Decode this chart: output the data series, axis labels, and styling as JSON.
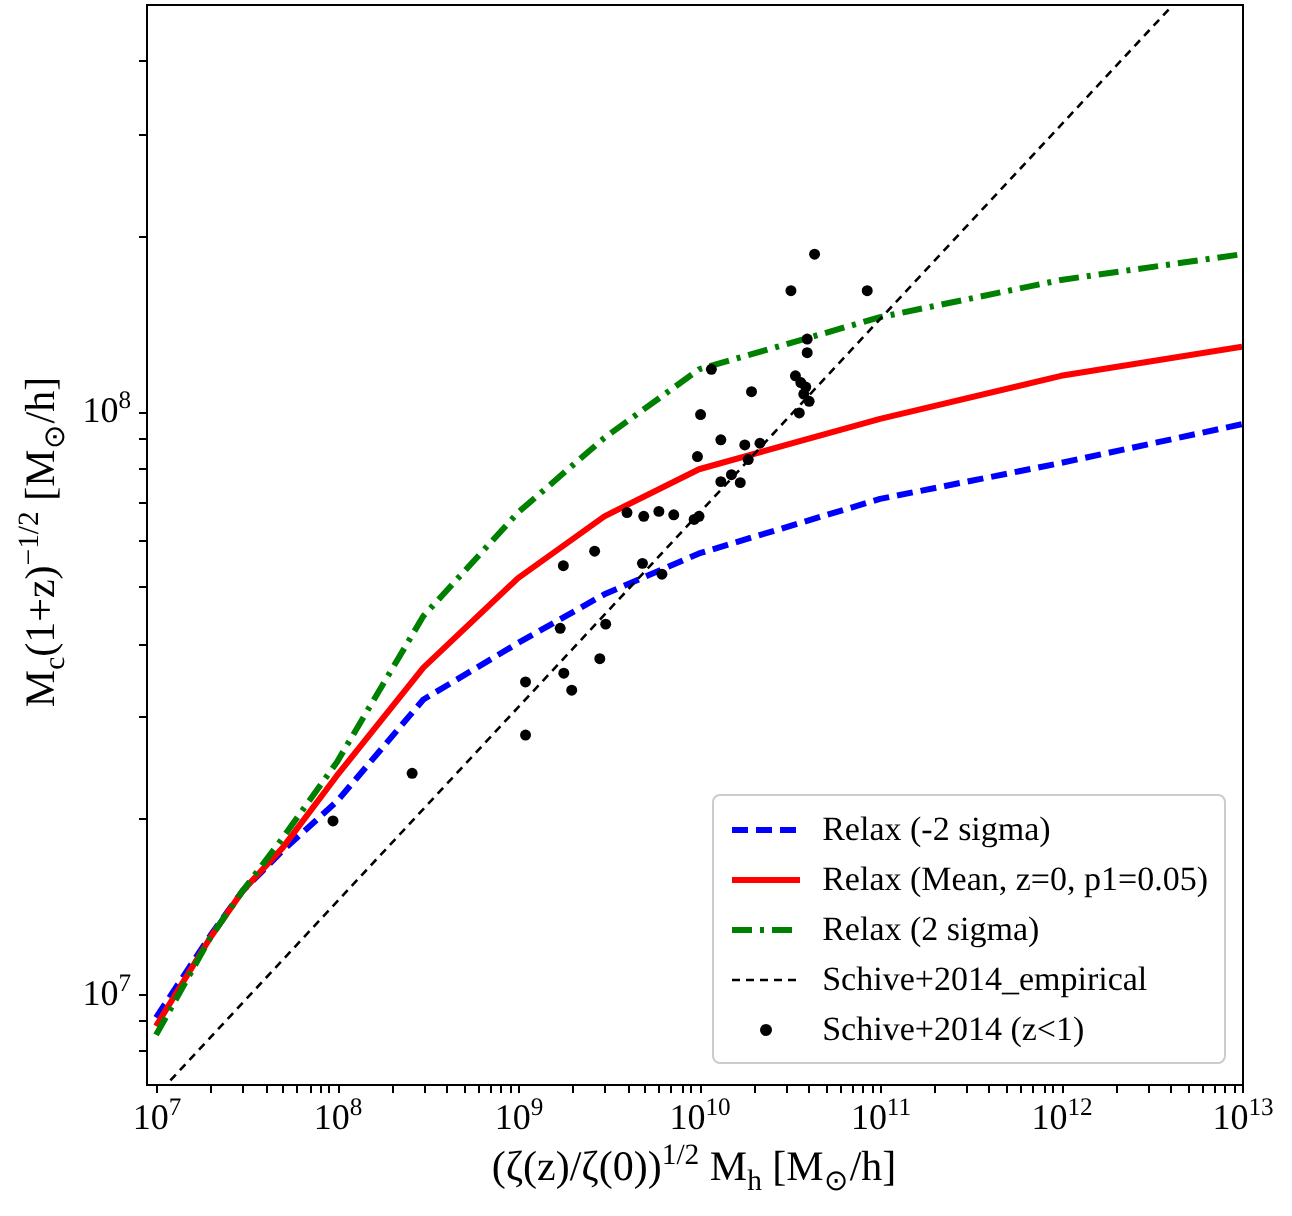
{
  "chart_data": {
    "type": "scatter",
    "xlabel": "(ζ(z)/ζ(0))$^{1/2}$ M$_{h}$ [M$_{⊙}$/h]",
    "ylabel": "M$_{c}$(1+z)$^{−1/2}$ [M$_{⊙}$/h]",
    "log": "xy",
    "grid": false,
    "legend": "bottom right",
    "xlim": [
      8800000.0,
      10000000000000.0
    ],
    "ylim": [
      7000000.0,
      500000000.0
    ],
    "xticks": [
      {
        "value": 10000000.0,
        "label": "10$^{7}$"
      },
      {
        "value": 20000000.0,
        "label": null
      },
      {
        "value": 30000000.0,
        "label": null
      },
      {
        "value": 40000000.0,
        "label": null
      },
      {
        "value": 50000000.0,
        "label": null
      },
      {
        "value": 60000000.0,
        "label": null
      },
      {
        "value": 70000000.0,
        "label": null
      },
      {
        "value": 80000000.0,
        "label": null
      },
      {
        "value": 90000000.0,
        "label": null
      },
      {
        "value": 100000000.0,
        "label": "10$^{8}$"
      },
      {
        "value": 200000000.0,
        "label": null
      },
      {
        "value": 300000000.0,
        "label": null
      },
      {
        "value": 400000000.0,
        "label": null
      },
      {
        "value": 500000000.0,
        "label": null
      },
      {
        "value": 600000000.0,
        "label": null
      },
      {
        "value": 700000000.0,
        "label": null
      },
      {
        "value": 800000000.0,
        "label": null
      },
      {
        "value": 900000000.0,
        "label": null
      },
      {
        "value": 1000000000.0,
        "label": "10$^{9}$"
      },
      {
        "value": 2000000000.0,
        "label": null
      },
      {
        "value": 3000000000.0,
        "label": null
      },
      {
        "value": 4000000000.0,
        "label": null
      },
      {
        "value": 5000000000.0,
        "label": null
      },
      {
        "value": 6000000000.0,
        "label": null
      },
      {
        "value": 7000000000.0,
        "label": null
      },
      {
        "value": 8000000000.0,
        "label": null
      },
      {
        "value": 9000000000.0,
        "label": null
      },
      {
        "value": 10000000000.0,
        "label": "10$^{10}$"
      },
      {
        "value": 20000000000.0,
        "label": null
      },
      {
        "value": 30000000000.0,
        "label": null
      },
      {
        "value": 40000000000.0,
        "label": null
      },
      {
        "value": 50000000000.0,
        "label": null
      },
      {
        "value": 60000000000.0,
        "label": null
      },
      {
        "value": 70000000000.0,
        "label": null
      },
      {
        "value": 80000000000.0,
        "label": null
      },
      {
        "value": 90000000000.0,
        "label": null
      },
      {
        "value": 100000000000.0,
        "label": "10$^{11}$"
      },
      {
        "value": 200000000000.0,
        "label": null
      },
      {
        "value": 300000000000.0,
        "label": null
      },
      {
        "value": 400000000000.0,
        "label": null
      },
      {
        "value": 500000000000.0,
        "label": null
      },
      {
        "value": 600000000000.0,
        "label": null
      },
      {
        "value": 700000000000.0,
        "label": null
      },
      {
        "value": 800000000000.0,
        "label": null
      },
      {
        "value": 900000000000.0,
        "label": null
      },
      {
        "value": 1000000000000.0,
        "label": "10$^{12}$"
      },
      {
        "value": 2000000000000.0,
        "label": null
      },
      {
        "value": 3000000000000.0,
        "label": null
      },
      {
        "value": 4000000000000.0,
        "label": null
      },
      {
        "value": 5000000000000.0,
        "label": null
      },
      {
        "value": 6000000000000.0,
        "label": null
      },
      {
        "value": 7000000000000.0,
        "label": null
      },
      {
        "value": 8000000000000.0,
        "label": null
      },
      {
        "value": 9000000000000.0,
        "label": null
      },
      {
        "value": 10000000000000.0,
        "label": "10$^{13}$"
      }
    ],
    "yticks": [
      {
        "value": 8000000.0,
        "label": null
      },
      {
        "value": 9000000.0,
        "label": null
      },
      {
        "value": 10000000.0,
        "label": "10$^{7}$"
      },
      {
        "value": 20000000.0,
        "label": null
      },
      {
        "value": 30000000.0,
        "label": null
      },
      {
        "value": 40000000.0,
        "label": null
      },
      {
        "value": 50000000.0,
        "label": null
      },
      {
        "value": 60000000.0,
        "label": null
      },
      {
        "value": 70000000.0,
        "label": null
      },
      {
        "value": 80000000.0,
        "label": null
      },
      {
        "value": 90000000.0,
        "label": null
      },
      {
        "value": 100000000.0,
        "label": "10$^{8}$"
      },
      {
        "value": 200000000.0,
        "label": null
      },
      {
        "value": 300000000.0,
        "label": null
      },
      {
        "value": 400000000.0,
        "label": null
      }
    ],
    "series": [
      {
        "name": "Relax (-2 sigma)",
        "type": "line",
        "color": "#0000ff",
        "line_style": "dashed",
        "x": [
          10000000.0,
          20000000.0,
          30000000.0,
          50000000.0,
          100000000.0,
          300000000.0,
          1000000000.0,
          3000000000.0,
          10000000000.0,
          100000000000.0,
          1000000000000.0,
          10000000000000.0
        ],
        "values": [
          9100000.0,
          12600000.0,
          15000000.0,
          17600000.0,
          21400000.0,
          32000000.0,
          40000000.0,
          48500000.0,
          57000000.0,
          70700000.0,
          81500000.0,
          95000000.0
        ]
      },
      {
        "name": "Relax (Mean, z=0, p1=0.05)",
        "type": "line",
        "color": "#ff0000",
        "line_style": "solid",
        "x": [
          10000000.0,
          20000000.0,
          30000000.0,
          50000000.0,
          100000000.0,
          300000000.0,
          1000000000.0,
          3000000000.0,
          10000000000.0,
          100000000000.0,
          1000000000000.0,
          10000000000000.0
        ],
        "values": [
          8800000.0,
          12500000.0,
          15000000.0,
          17800000.0,
          23700000.0,
          36300000.0,
          51700000.0,
          66000000.0,
          79500000.0,
          97000000.0,
          115000000.0,
          129000000.0
        ]
      },
      {
        "name": "Relax (2 sigma)",
        "type": "line",
        "color": "#008000",
        "line_style": "dashdot",
        "x": [
          10000000.0,
          20000000.0,
          30000000.0,
          50000000.0,
          100000000.0,
          300000000.0,
          1000000000.0,
          3000000000.0,
          10000000000.0,
          100000000000.0,
          1000000000000.0,
          10000000000000.0
        ],
        "values": [
          8500000.0,
          12500000.0,
          15000000.0,
          18500000.0,
          25000000.0,
          44500000.0,
          67000000.0,
          90000000.0,
          118000000.0,
          145000000.0,
          168000000.0,
          186000000.0
        ]
      },
      {
        "name": "Schive+2014_empirical",
        "type": "line",
        "color": "#000000",
        "line_style": "dashed",
        "x": [
          12000000.0,
          4000000000000.0
        ],
        "values": [
          7100000.0,
          492000000.0
        ]
      },
      {
        "name": "Schive+2014 (z<1)",
        "color": "#000000",
        "marker": "circle",
        "x": [
          95000000.0,
          260000000.0,
          1100000000.0,
          1100000000.0,
          1710000000.0,
          1790000000.0,
          1980000000.0,
          2830000000.0,
          3050000000.0,
          1780000000.0,
          2650000000.0,
          4000000000.0,
          4950000000.0,
          4870000000.0,
          6000000000.0,
          7250000000.0,
          6240000000.0,
          9400000000.0,
          10000000000.0,
          9800000000.0,
          13200000000.0,
          15100000000.0,
          16900000000.0,
          18700000000.0,
          13200000000.0,
          17900000000.0,
          21700000000.0,
          10200000000.0,
          19500000000.0,
          11700000000.0,
          32200000000.0,
          43500000000.0,
          85000000000.0,
          39600000000.0,
          39600000000.0,
          34100000000.0,
          36500000000.0,
          38900000000.0,
          37900000000.0,
          40600000000.0,
          35800000000.0
        ],
        "values": [
          19800000.0,
          23900000.0,
          27800000.0,
          34300000.0,
          42400000.0,
          35500000.0,
          33200000.0,
          37600000.0,
          43100000.0,
          54300000.0,
          57500000.0,
          67000000.0,
          66000000.0,
          54800000.0,
          67300000.0,
          66400000.0,
          52500000.0,
          65200000.0,
          66000000.0,
          83600000.0,
          75700000.0,
          77800000.0,
          75400000.0,
          82600000.0,
          89300000.0,
          87500000.0,
          88100000.0,
          98700000.0,
          108000000.0,
          118000000.0,
          161000000.0,
          186000000.0,
          161000000.0,
          133000000.0,
          126000000.0,
          115000000.0,
          112000000.0,
          110000000.0,
          107000000.0,
          104000000.0,
          99300000.0
        ]
      }
    ]
  }
}
